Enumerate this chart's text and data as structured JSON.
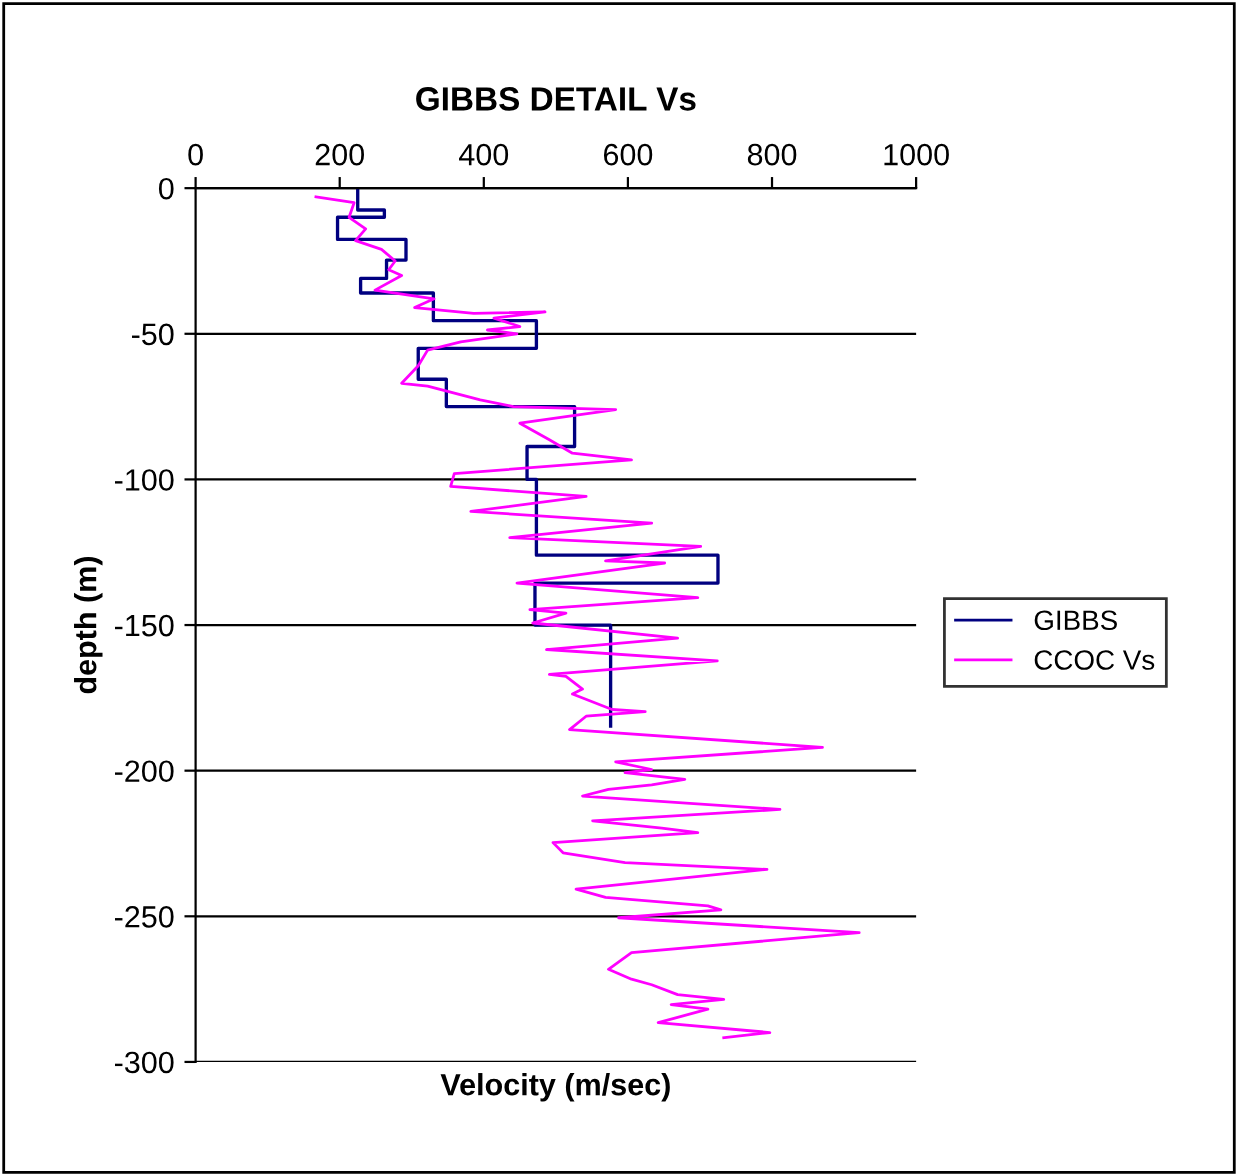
{
  "chart_data": {
    "type": "line",
    "title": "GIBBS DETAIL Vs",
    "xlabel": "Velocity (m/sec)",
    "ylabel": "depth (m)",
    "xlim": [
      0,
      1000
    ],
    "xticks": [
      0,
      200,
      400,
      600,
      800,
      1000
    ],
    "ylim": [
      -300,
      0
    ],
    "yticks": [
      -300,
      -250,
      -200,
      -150,
      -100,
      -50,
      0
    ],
    "grid": "y",
    "legend": "right",
    "marker": "none",
    "line_style": "solid",
    "series": [
      {
        "name": "GIBBS",
        "color": "#000080",
        "type": "step",
        "x": [
          225,
          225,
          262,
          262,
          197,
          197,
          292,
          292,
          265,
          265,
          229,
          229,
          330,
          330,
          473,
          473,
          309,
          309,
          348,
          348,
          526,
          526,
          460,
          460,
          473,
          473,
          725,
          725,
          471,
          471,
          576,
          576
        ],
        "values": [
          0,
          -7.5,
          -7.5,
          -10,
          -10,
          -17.6,
          -17.6,
          -24.7,
          -24.7,
          -31,
          -31,
          -36,
          -36,
          -45.5,
          -45.5,
          -55,
          -55,
          -65.6,
          -65.6,
          -75,
          -75,
          -88.7,
          -88.7,
          -100,
          -100,
          -126,
          -126,
          -135.6,
          -135.6,
          -150,
          -150,
          -184.7
        ]
      },
      {
        "name": "CCOC Vs",
        "color": "#ff00ff",
        "x": [
          167,
          220,
          213,
          236,
          222,
          258,
          277,
          268,
          286,
          249,
          331,
          304,
          386,
          485,
          414,
          450,
          405,
          446,
          368,
          322,
          309,
          286,
          322,
          395,
          441,
          583,
          450,
          491,
          523,
          605,
          359,
          354,
          542,
          382,
          633,
          436,
          701,
          569,
          651,
          446,
          697,
          464,
          514,
          468,
          669,
          487,
          724,
          491,
          514,
          537,
          523,
          578,
          624,
          542,
          519,
          870,
          583,
          633,
          596,
          679,
          633,
          573,
          537,
          811,
          551,
          647,
          697,
          496,
          510,
          596,
          793,
          528,
          569,
          711,
          729,
          587,
          921,
          605,
          573,
          605,
          633,
          669,
          733,
          660,
          711,
          642,
          797,
          733
        ],
        "values": [
          -3,
          -5,
          -10,
          -14,
          -18,
          -21,
          -25,
          -28,
          -30,
          -35,
          -38,
          -41,
          -43,
          -42.5,
          -44.6,
          -47.5,
          -48.7,
          -50,
          -52.8,
          -55.6,
          -61,
          -67,
          -68,
          -72.7,
          -75,
          -76,
          -80.7,
          -86.4,
          -91,
          -93.3,
          -98,
          -102.4,
          -105.8,
          -111,
          -115,
          -120,
          -123,
          -128,
          -128.7,
          -135.6,
          -140.6,
          -144.7,
          -145.9,
          -149.3,
          -154.5,
          -158.4,
          -162.3,
          -166.9,
          -167.6,
          -172,
          -173.7,
          -179,
          -179.7,
          -181.3,
          -185.9,
          -192,
          -197,
          -199.6,
          -200.7,
          -203,
          -204.9,
          -206.4,
          -208.7,
          -213.3,
          -217.2,
          -219.7,
          -221.3,
          -224.7,
          -228.2,
          -231.6,
          -233.9,
          -240.7,
          -243.5,
          -246.4,
          -247.8,
          -250.5,
          -255.6,
          -262.5,
          -268.2,
          -271.6,
          -273.5,
          -276.9,
          -278.5,
          -280.3,
          -281.9,
          -286.5,
          -289.9,
          -291.7
        ]
      }
    ]
  }
}
